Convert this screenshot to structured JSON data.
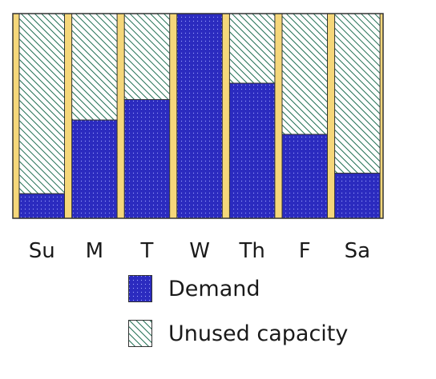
{
  "chart_data": {
    "type": "bar",
    "stacked": true,
    "categories": [
      "Su",
      "M",
      "T",
      "W",
      "Th",
      "F",
      "Sa"
    ],
    "series": [
      {
        "name": "Demand",
        "values": [
          12,
          48,
          58,
          100,
          66,
          41,
          22
        ]
      },
      {
        "name": "Unused capacity",
        "values": [
          88,
          52,
          42,
          0,
          34,
          59,
          78
        ]
      }
    ],
    "ylim": [
      0,
      100
    ],
    "grid": false,
    "legend_position": "bottom",
    "colors": {
      "demand": "#2b2bbf",
      "demand_dots": "#9fa6ff",
      "unused_bg": "#ffffff",
      "unused_hatch": "#1f6e52",
      "separator": "#f5d77a",
      "border": "#333333"
    }
  },
  "legend": {
    "demand_label": "Demand",
    "unused_label": "Unused capacity"
  }
}
